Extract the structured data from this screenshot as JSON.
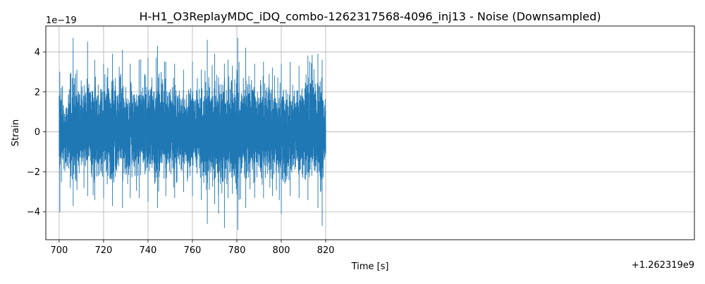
{
  "chart_data": {
    "type": "line",
    "title": "H-H1_O3ReplayMDC_iDQ_combo-1262317568-4096_inj13 - Noise (Downsampled)",
    "xlabel": "Time [s]",
    "ylabel": "Strain",
    "x_offset_label": "+1.262319e9",
    "y_scale_label": "1e−19",
    "xlim": [
      694,
      986
    ],
    "ylim": [
      -5.4,
      5.3
    ],
    "x_ticks": [
      700,
      720,
      740,
      760,
      780,
      800,
      820
    ],
    "x_tick_labels": [
      "700",
      "720",
      "740",
      "760",
      "780",
      "800",
      "820"
    ],
    "y_ticks": [
      -4,
      -2,
      0,
      2,
      4
    ],
    "y_tick_labels": [
      "−4",
      "−2",
      "0",
      "2",
      "4"
    ],
    "grid": true,
    "line_color": "#1f77b4",
    "series": [
      {
        "x_start": 700,
        "x_end": 820,
        "envelope_t": [
          700,
          700.3,
          701,
          705,
          706.3,
          708,
          712.8,
          716,
          720,
          724,
          728.5,
          732,
          736,
          740,
          744.3,
          748,
          752,
          756,
          760,
          764,
          766.7,
          770,
          774.4,
          776,
          778,
          780.4,
          781,
          784,
          788,
          792,
          796,
          800,
          804,
          808,
          812,
          816.5,
          818.4,
          820
        ],
        "envelope_max": [
          1.8,
          3.0,
          2.2,
          2.9,
          4.7,
          3.1,
          4.5,
          3.6,
          3.4,
          3.9,
          4.1,
          3.4,
          3.6,
          3.7,
          4.3,
          3.5,
          3.4,
          3.1,
          3.5,
          3.1,
          4.6,
          3.9,
          3.4,
          3.6,
          3.3,
          4.7,
          3.5,
          4.2,
          3.4,
          3.5,
          3.2,
          3.4,
          3.5,
          3.3,
          3.8,
          3.9,
          3.6,
          1.8
        ],
        "envelope_min": [
          -1.2,
          -4.0,
          -2.5,
          -2.8,
          -3.7,
          -2.9,
          -3.2,
          -3.4,
          -3.3,
          -3.7,
          -3.8,
          -3.3,
          -3.3,
          -3.5,
          -3.8,
          -3.2,
          -3.3,
          -3.0,
          -3.2,
          -3.4,
          -4.6,
          -3.6,
          -4.8,
          -3.3,
          -3.1,
          -4.9,
          -3.4,
          -3.8,
          -3.3,
          -3.3,
          -3.2,
          -4.1,
          -3.2,
          -3.3,
          -3.4,
          -3.8,
          -4.7,
          -1.1
        ]
      }
    ]
  }
}
